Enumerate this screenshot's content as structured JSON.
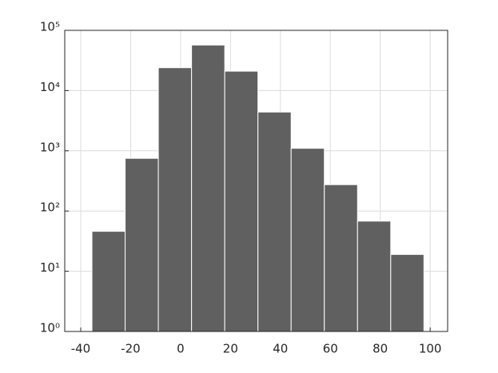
{
  "chart_data": {
    "type": "histogram",
    "bins": [
      -35.5,
      -22.2,
      -8.9,
      4.4,
      17.7,
      31.0,
      44.3,
      57.6,
      70.9,
      84.2,
      97.5
    ],
    "values": [
      46,
      750,
      24000,
      57000,
      21000,
      4400,
      1100,
      274,
      68,
      19
    ],
    "color": "#606060",
    "edgecolor": "#ffffff",
    "xlim": [
      -46.4,
      107
    ],
    "xticks": [
      -40,
      -20,
      0,
      20,
      40,
      60,
      80,
      100
    ],
    "ylim": [
      1,
      100000
    ],
    "log_y": true,
    "yticks": [
      {
        "value": 1,
        "label": "10⁰"
      },
      {
        "value": 10,
        "label": "10¹"
      },
      {
        "value": 100,
        "label": "10²"
      },
      {
        "value": 1000,
        "label": "10³"
      },
      {
        "value": 10000,
        "label": "10⁴"
      },
      {
        "value": 100000,
        "label": "10⁵"
      }
    ],
    "grid": true
  }
}
